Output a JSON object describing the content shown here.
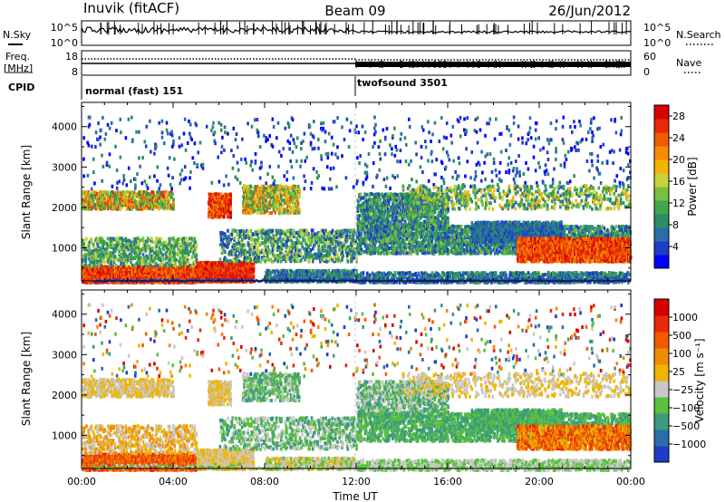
{
  "header": {
    "station": "Inuvik (fitACF)",
    "beam": "Beam 09",
    "date": "26/Jun/2012"
  },
  "strip_labels": {
    "nsky": "N.Sky",
    "nsearch": "N.Search",
    "freq_line1": "Freq.",
    "freq_line2": "[MHz]",
    "nave": "Nave",
    "cpid": "CPID"
  },
  "strips": {
    "noise_ticks": [
      "10^5",
      "10^0"
    ],
    "noise_ticks_right": [
      "10^5",
      "10^0"
    ],
    "freq_ticks": [
      "18",
      "8"
    ],
    "nave_ticks": [
      "60",
      "0"
    ]
  },
  "cpid_segments": [
    {
      "label": "normal (fast) 151",
      "start_hour": 0
    },
    {
      "label": "twofsound 3501",
      "start_hour": 12
    }
  ],
  "chart_data": [
    {
      "type": "heatmap",
      "parameter": "Power",
      "ylabel": "Slant Range [km]",
      "ylim": [
        180,
        4600
      ],
      "yticks": [
        1000,
        2000,
        3000,
        4000
      ],
      "xlim": [
        "00:00",
        "24:00"
      ],
      "colorbar": {
        "label": "Power [dB]",
        "ticks": [
          "28",
          "24",
          "20",
          "16",
          "12",
          "8",
          "4"
        ],
        "range": [
          0,
          30
        ],
        "colors": [
          "#0000ff",
          "#1e3cc8",
          "#2a6ea8",
          "#2c8c64",
          "#3ea84a",
          "#78c040",
          "#c8d23c",
          "#f5b400",
          "#f58c00",
          "#f05a00",
          "#e82a0a",
          "#d80000"
        ]
      }
    },
    {
      "type": "heatmap",
      "parameter": "Velocity",
      "ylabel": "Slant Range [km]",
      "xlabel": "Time UT",
      "ylim": [
        180,
        4600
      ],
      "yticks": [
        1000,
        2000,
        3000,
        4000
      ],
      "xlim": [
        "00:00",
        "24:00"
      ],
      "colorbar": {
        "label": "Velocity [m s⁻¹]",
        "ticks": [
          "1000",
          "500",
          "100",
          "25",
          "−25",
          "−100",
          "−500",
          "−1000"
        ],
        "colors": [
          "#1e3cc8",
          "#2a6ea8",
          "#3a9c7c",
          "#5cc040",
          "#c8c8c8",
          "#f0b400",
          "#f08c00",
          "#f05a00",
          "#e82a0a",
          "#d80000"
        ]
      }
    }
  ],
  "time_axis": {
    "labels": [
      "00:00",
      "04:00",
      "08:00",
      "12:00",
      "16:00",
      "20:00",
      "00:00"
    ],
    "label": "Time UT"
  }
}
